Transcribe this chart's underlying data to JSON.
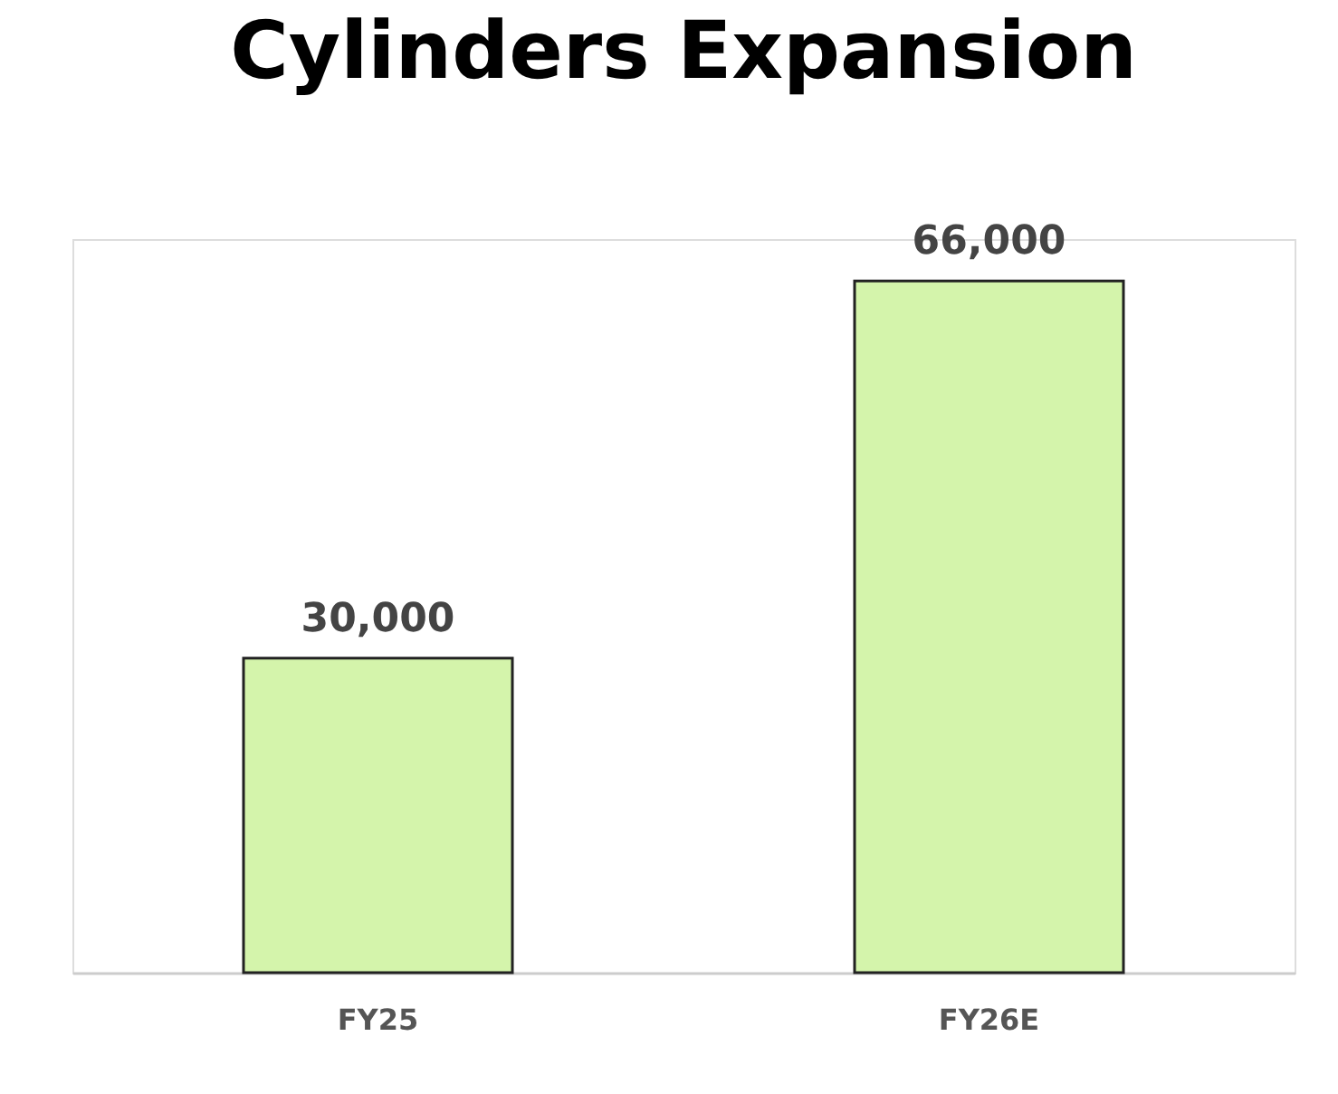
{
  "chart_data": {
    "type": "bar",
    "title": "Cylinders Expansion",
    "categories": [
      "FY25",
      "FY26E"
    ],
    "values": [
      30000,
      66000
    ],
    "value_labels": [
      "30,000",
      "66,000"
    ],
    "color": "#d4f4ab",
    "grid": false
  }
}
